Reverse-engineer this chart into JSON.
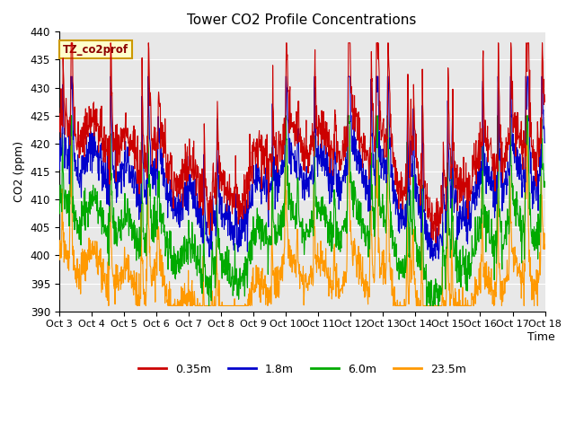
{
  "title": "Tower CO2 Profile Concentrations",
  "xlabel": "Time",
  "ylabel": "CO2 (ppm)",
  "ylim": [
    390,
    440
  ],
  "yticks": [
    390,
    395,
    400,
    405,
    410,
    415,
    420,
    425,
    430,
    435,
    440
  ],
  "xtick_labels": [
    "Oct 3",
    "Oct 4",
    "Oct 5",
    "Oct 6",
    "Oct 7",
    "Oct 8",
    "Oct 9",
    "Oct 10",
    "Oct 11",
    "Oct 12",
    "Oct 13",
    "Oct 14",
    "Oct 15",
    "Oct 16",
    "Oct 17",
    "Oct 18"
  ],
  "series_labels": [
    "0.35m",
    "1.8m",
    "6.0m",
    "23.5m"
  ],
  "series_colors": [
    "#cc0000",
    "#0000cc",
    "#00aa00",
    "#ff9900"
  ],
  "annotation_text": "TZ_co2prof",
  "annotation_color": "#cc9900",
  "background_color": "#e8e8e8",
  "n_days": 15,
  "points_per_day": 96,
  "seed": 12345
}
